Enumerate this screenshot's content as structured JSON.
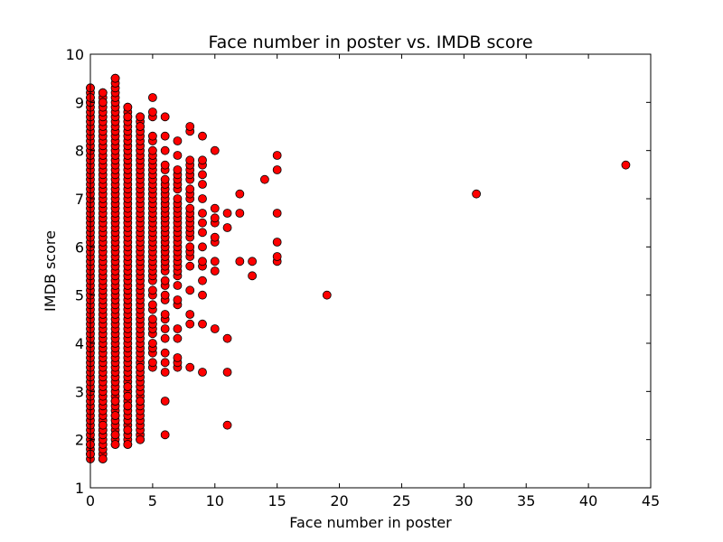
{
  "chart_data": {
    "type": "scatter",
    "title": "Face number in poster vs. IMDB score",
    "xlabel": "Face number in poster",
    "ylabel": "IMDB score",
    "xlim": [
      0,
      45
    ],
    "ylim": [
      1,
      10
    ],
    "xticks": [
      0,
      5,
      10,
      15,
      20,
      25,
      30,
      35,
      40,
      45
    ],
    "yticks": [
      1,
      2,
      3,
      4,
      5,
      6,
      7,
      8,
      9,
      10
    ],
    "xtick_labels": [
      "0",
      "5",
      "10",
      "15",
      "20",
      "25",
      "30",
      "35",
      "40",
      "45"
    ],
    "ytick_labels": [
      "1",
      "2",
      "3",
      "4",
      "5",
      "6",
      "7",
      "8",
      "9",
      "10"
    ],
    "grid": false,
    "marker_color": "#ff0000",
    "marker_edge_color": "#000000",
    "dense_columns": [
      {
        "x": 0,
        "ymin": 1.6,
        "ymax": 9.3
      },
      {
        "x": 1,
        "ymin": 1.6,
        "ymax": 9.2
      },
      {
        "x": 2,
        "ymin": 1.9,
        "ymax": 9.5
      },
      {
        "x": 3,
        "ymin": 1.9,
        "ymax": 8.9
      },
      {
        "x": 4,
        "ymin": 2.0,
        "ymax": 8.7
      }
    ],
    "points": [
      {
        "x": 0,
        "y": 1.7
      },
      {
        "x": 0,
        "y": 1.9
      },
      {
        "x": 0,
        "y": 9.0
      },
      {
        "x": 0,
        "y": 9.1
      },
      {
        "x": 0,
        "y": 9.3
      },
      {
        "x": 1,
        "y": 1.6
      },
      {
        "x": 1,
        "y": 2.2
      },
      {
        "x": 1,
        "y": 2.3
      },
      {
        "x": 1,
        "y": 9.0
      },
      {
        "x": 1,
        "y": 9.2
      },
      {
        "x": 2,
        "y": 1.9
      },
      {
        "x": 2,
        "y": 2.1
      },
      {
        "x": 2,
        "y": 2.5
      },
      {
        "x": 2,
        "y": 2.8
      },
      {
        "x": 2,
        "y": 9.5
      },
      {
        "x": 3,
        "y": 1.9
      },
      {
        "x": 3,
        "y": 2.2
      },
      {
        "x": 3,
        "y": 2.7
      },
      {
        "x": 3,
        "y": 2.9
      },
      {
        "x": 3,
        "y": 3.1
      },
      {
        "x": 3,
        "y": 8.7
      },
      {
        "x": 3,
        "y": 8.9
      },
      {
        "x": 4,
        "y": 2.0
      },
      {
        "x": 4,
        "y": 2.8
      },
      {
        "x": 4,
        "y": 3.5
      },
      {
        "x": 4,
        "y": 8.5
      },
      {
        "x": 4,
        "y": 8.7
      },
      {
        "x": 5,
        "y": 3.5
      },
      {
        "x": 5,
        "y": 3.6
      },
      {
        "x": 5,
        "y": 3.8
      },
      {
        "x": 5,
        "y": 3.9
      },
      {
        "x": 5,
        "y": 4.0
      },
      {
        "x": 5,
        "y": 4.2
      },
      {
        "x": 5,
        "y": 4.3
      },
      {
        "x": 5,
        "y": 4.4
      },
      {
        "x": 5,
        "y": 4.5
      },
      {
        "x": 5,
        "y": 4.7
      },
      {
        "x": 5,
        "y": 4.8
      },
      {
        "x": 5,
        "y": 5.0
      },
      {
        "x": 5,
        "y": 5.1
      },
      {
        "x": 5,
        "y": 5.3
      },
      {
        "x": 5,
        "y": 5.4
      },
      {
        "x": 5,
        "y": 5.5
      },
      {
        "x": 5,
        "y": 5.6
      },
      {
        "x": 5,
        "y": 5.7
      },
      {
        "x": 5,
        "y": 5.8
      },
      {
        "x": 5,
        "y": 5.9
      },
      {
        "x": 5,
        "y": 6.0
      },
      {
        "x": 5,
        "y": 6.1
      },
      {
        "x": 5,
        "y": 6.2
      },
      {
        "x": 5,
        "y": 6.3
      },
      {
        "x": 5,
        "y": 6.4
      },
      {
        "x": 5,
        "y": 6.5
      },
      {
        "x": 5,
        "y": 6.6
      },
      {
        "x": 5,
        "y": 6.7
      },
      {
        "x": 5,
        "y": 6.8
      },
      {
        "x": 5,
        "y": 6.9
      },
      {
        "x": 5,
        "y": 7.0
      },
      {
        "x": 5,
        "y": 7.1
      },
      {
        "x": 5,
        "y": 7.2
      },
      {
        "x": 5,
        "y": 7.3
      },
      {
        "x": 5,
        "y": 7.4
      },
      {
        "x": 5,
        "y": 7.5
      },
      {
        "x": 5,
        "y": 7.6
      },
      {
        "x": 5,
        "y": 7.7
      },
      {
        "x": 5,
        "y": 7.8
      },
      {
        "x": 5,
        "y": 7.9
      },
      {
        "x": 5,
        "y": 8.0
      },
      {
        "x": 5,
        "y": 8.2
      },
      {
        "x": 5,
        "y": 8.3
      },
      {
        "x": 5,
        "y": 8.7
      },
      {
        "x": 5,
        "y": 8.8
      },
      {
        "x": 5,
        "y": 9.1
      },
      {
        "x": 6,
        "y": 2.1
      },
      {
        "x": 6,
        "y": 2.8
      },
      {
        "x": 6,
        "y": 3.4
      },
      {
        "x": 6,
        "y": 3.6
      },
      {
        "x": 6,
        "y": 3.8
      },
      {
        "x": 6,
        "y": 4.1
      },
      {
        "x": 6,
        "y": 4.3
      },
      {
        "x": 6,
        "y": 4.5
      },
      {
        "x": 6,
        "y": 4.6
      },
      {
        "x": 6,
        "y": 4.9
      },
      {
        "x": 6,
        "y": 5.0
      },
      {
        "x": 6,
        "y": 5.2
      },
      {
        "x": 6,
        "y": 5.3
      },
      {
        "x": 6,
        "y": 5.5
      },
      {
        "x": 6,
        "y": 5.6
      },
      {
        "x": 6,
        "y": 5.7
      },
      {
        "x": 6,
        "y": 5.8
      },
      {
        "x": 6,
        "y": 5.9
      },
      {
        "x": 6,
        "y": 6.0
      },
      {
        "x": 6,
        "y": 6.1
      },
      {
        "x": 6,
        "y": 6.2
      },
      {
        "x": 6,
        "y": 6.3
      },
      {
        "x": 6,
        "y": 6.4
      },
      {
        "x": 6,
        "y": 6.5
      },
      {
        "x": 6,
        "y": 6.6
      },
      {
        "x": 6,
        "y": 6.7
      },
      {
        "x": 6,
        "y": 6.8
      },
      {
        "x": 6,
        "y": 6.9
      },
      {
        "x": 6,
        "y": 7.0
      },
      {
        "x": 6,
        "y": 7.1
      },
      {
        "x": 6,
        "y": 7.2
      },
      {
        "x": 6,
        "y": 7.3
      },
      {
        "x": 6,
        "y": 7.4
      },
      {
        "x": 6,
        "y": 7.6
      },
      {
        "x": 6,
        "y": 7.7
      },
      {
        "x": 6,
        "y": 8.0
      },
      {
        "x": 6,
        "y": 8.3
      },
      {
        "x": 6,
        "y": 8.7
      },
      {
        "x": 7,
        "y": 3.5
      },
      {
        "x": 7,
        "y": 3.6
      },
      {
        "x": 7,
        "y": 3.7
      },
      {
        "x": 7,
        "y": 4.1
      },
      {
        "x": 7,
        "y": 4.3
      },
      {
        "x": 7,
        "y": 4.8
      },
      {
        "x": 7,
        "y": 4.9
      },
      {
        "x": 7,
        "y": 5.2
      },
      {
        "x": 7,
        "y": 5.4
      },
      {
        "x": 7,
        "y": 5.5
      },
      {
        "x": 7,
        "y": 5.6
      },
      {
        "x": 7,
        "y": 5.7
      },
      {
        "x": 7,
        "y": 5.8
      },
      {
        "x": 7,
        "y": 5.9
      },
      {
        "x": 7,
        "y": 6.0
      },
      {
        "x": 7,
        "y": 6.1
      },
      {
        "x": 7,
        "y": 6.2
      },
      {
        "x": 7,
        "y": 6.3
      },
      {
        "x": 7,
        "y": 6.4
      },
      {
        "x": 7,
        "y": 6.5
      },
      {
        "x": 7,
        "y": 6.6
      },
      {
        "x": 7,
        "y": 6.7
      },
      {
        "x": 7,
        "y": 6.8
      },
      {
        "x": 7,
        "y": 6.9
      },
      {
        "x": 7,
        "y": 7.0
      },
      {
        "x": 7,
        "y": 7.2
      },
      {
        "x": 7,
        "y": 7.3
      },
      {
        "x": 7,
        "y": 7.4
      },
      {
        "x": 7,
        "y": 7.5
      },
      {
        "x": 7,
        "y": 7.6
      },
      {
        "x": 7,
        "y": 7.9
      },
      {
        "x": 7,
        "y": 8.2
      },
      {
        "x": 8,
        "y": 3.5
      },
      {
        "x": 8,
        "y": 4.4
      },
      {
        "x": 8,
        "y": 4.6
      },
      {
        "x": 8,
        "y": 5.1
      },
      {
        "x": 8,
        "y": 5.6
      },
      {
        "x": 8,
        "y": 5.8
      },
      {
        "x": 8,
        "y": 5.9
      },
      {
        "x": 8,
        "y": 6.0
      },
      {
        "x": 8,
        "y": 6.2
      },
      {
        "x": 8,
        "y": 6.3
      },
      {
        "x": 8,
        "y": 6.4
      },
      {
        "x": 8,
        "y": 6.5
      },
      {
        "x": 8,
        "y": 6.6
      },
      {
        "x": 8,
        "y": 6.7
      },
      {
        "x": 8,
        "y": 6.8
      },
      {
        "x": 8,
        "y": 7.0
      },
      {
        "x": 8,
        "y": 7.1
      },
      {
        "x": 8,
        "y": 7.2
      },
      {
        "x": 8,
        "y": 7.4
      },
      {
        "x": 8,
        "y": 7.5
      },
      {
        "x": 8,
        "y": 7.6
      },
      {
        "x": 8,
        "y": 7.7
      },
      {
        "x": 8,
        "y": 7.8
      },
      {
        "x": 8,
        "y": 8.4
      },
      {
        "x": 8,
        "y": 8.5
      },
      {
        "x": 9,
        "y": 3.4
      },
      {
        "x": 9,
        "y": 4.4
      },
      {
        "x": 9,
        "y": 5.0
      },
      {
        "x": 9,
        "y": 5.3
      },
      {
        "x": 9,
        "y": 5.6
      },
      {
        "x": 9,
        "y": 5.7
      },
      {
        "x": 9,
        "y": 6.0
      },
      {
        "x": 9,
        "y": 6.3
      },
      {
        "x": 9,
        "y": 6.5
      },
      {
        "x": 9,
        "y": 6.7
      },
      {
        "x": 9,
        "y": 7.0
      },
      {
        "x": 9,
        "y": 7.3
      },
      {
        "x": 9,
        "y": 7.5
      },
      {
        "x": 9,
        "y": 7.7
      },
      {
        "x": 9,
        "y": 7.8
      },
      {
        "x": 9,
        "y": 8.3
      },
      {
        "x": 10,
        "y": 4.3
      },
      {
        "x": 10,
        "y": 5.5
      },
      {
        "x": 10,
        "y": 5.7
      },
      {
        "x": 10,
        "y": 6.1
      },
      {
        "x": 10,
        "y": 6.2
      },
      {
        "x": 10,
        "y": 6.5
      },
      {
        "x": 10,
        "y": 6.6
      },
      {
        "x": 10,
        "y": 6.8
      },
      {
        "x": 10,
        "y": 8.0
      },
      {
        "x": 11,
        "y": 2.3
      },
      {
        "x": 11,
        "y": 3.4
      },
      {
        "x": 11,
        "y": 4.1
      },
      {
        "x": 11,
        "y": 6.4
      },
      {
        "x": 11,
        "y": 6.7
      },
      {
        "x": 12,
        "y": 5.7
      },
      {
        "x": 12,
        "y": 6.7
      },
      {
        "x": 12,
        "y": 7.1
      },
      {
        "x": 13,
        "y": 5.4
      },
      {
        "x": 13,
        "y": 5.7
      },
      {
        "x": 14,
        "y": 7.4
      },
      {
        "x": 15,
        "y": 5.7
      },
      {
        "x": 15,
        "y": 5.8
      },
      {
        "x": 15,
        "y": 6.1
      },
      {
        "x": 15,
        "y": 6.7
      },
      {
        "x": 15,
        "y": 7.6
      },
      {
        "x": 15,
        "y": 7.9
      },
      {
        "x": 19,
        "y": 5.0
      },
      {
        "x": 31,
        "y": 7.1
      },
      {
        "x": 43,
        "y": 7.7
      }
    ]
  }
}
